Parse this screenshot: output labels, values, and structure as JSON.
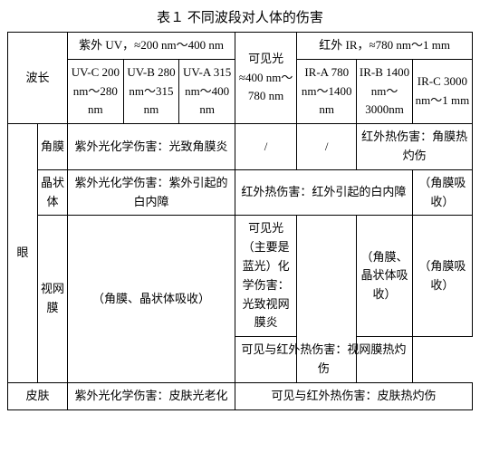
{
  "title": "表１ 不同波段对人体的伤害",
  "header": {
    "wavelength_label": "波长",
    "uv_group": "紫外 UV，≈200 nm～400 nm",
    "visible_group": "可见光≈400 nm～780 nm",
    "ir_group": "红外 IR，≈780 nm～1 mm",
    "uv_c": "UV-C 200 nm～280 nm",
    "uv_b": "UV-B 280 nm～315 nm",
    "uv_a": "UV-A 315 nm～400 nm",
    "ir_a": "IR-A 780 nm～1400 nm",
    "ir_b": "IR-B 1400 nm～3000nm",
    "ir_c": "IR-C 3000 nm～1 mm"
  },
  "rows": {
    "eye_label": "眼",
    "cornea_label": "角膜",
    "lens_label": "晶状体",
    "retina_label": "视网膜",
    "skin_label": "皮肤",
    "cornea_uv": "紫外光化学伤害：光致角膜炎",
    "cornea_vis": "/",
    "cornea_ira": "/",
    "cornea_irbc": "红外热伤害：角膜热灼伤",
    "lens_uv": "紫外光化学伤害：紫外引起的白内障",
    "lens_vis_ira": "红外热伤害：红外引起的白内障",
    "lens_irbc": "（角膜吸收）",
    "retina_uv": "（角膜、晶状体吸收）",
    "retina_vis": "可见光（主要是蓝光）化学伤害：光致视网膜炎",
    "retina_irb": "（角膜、晶状体吸收）",
    "retina_irc": "（角膜吸收）",
    "retina_thermal": "可见与红外热伤害：视网膜热灼伤",
    "skin_uv": "紫外光化学伤害：皮肤光老化",
    "skin_visir": "可见与红外热伤害：皮肤热灼伤"
  }
}
